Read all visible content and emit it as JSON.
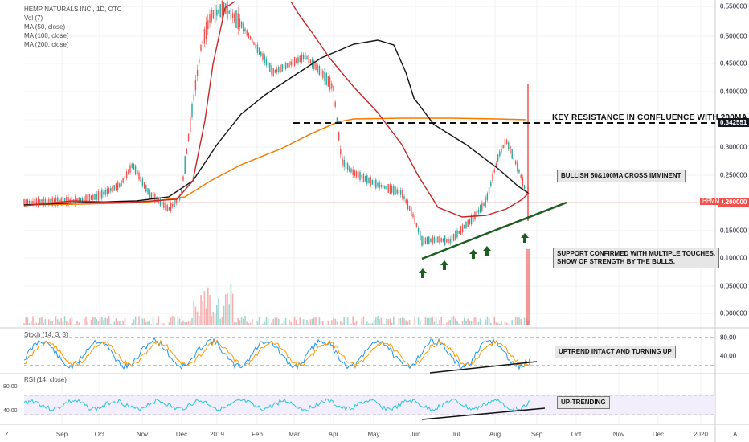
{
  "legend": {
    "title": "HEMP NATURALS INC., 1D, OTC",
    "vol": "Vol (7)",
    "ma50": "MA (50, close)",
    "ma100": "MA (100, close)",
    "ma200": "MA (200, close)"
  },
  "price_axis": [
    "0.550000",
    "0.500000",
    "0.450000",
    "0.400000",
    "0.300000",
    "0.250000",
    "0.150000",
    "0.100000",
    "0.050000",
    "0.000000"
  ],
  "price_tags": {
    "resistance": "0.342551",
    "last": "0.200000",
    "symbol": "HPMM"
  },
  "stoch": {
    "title": "Stoch (14, 3, 3)",
    "levels": [
      "80.00",
      "40.00"
    ]
  },
  "rsi": {
    "title": "RSI (14, close)",
    "levels": [
      "80.00",
      "40.00"
    ]
  },
  "time_axis": [
    "Sep",
    "Oct",
    "Nov",
    "Dec",
    "2019",
    "Feb",
    "Mar",
    "Apr",
    "May",
    "Jun",
    "Jul",
    "Aug",
    "Sep",
    "Oct",
    "Nov",
    "Dec",
    "2020"
  ],
  "annotations": {
    "resistance": "KEY RESISTANCE IN CONFLUENCE WITH  200MA",
    "cross": "BULLISH 50&100MA CROSS IMMINENT",
    "support_line1": "SUPPORT CONFIRMED WITH MULTIPLE TOUCHES.",
    "support_line2": "SHOW OF STRENGTH BY THE BULLS.",
    "stoch": "UPTREND INTACT AND TURNING UP",
    "rsi": "UP-TRENDING"
  },
  "corner_labels": {
    "left": "Z",
    "right": "A"
  },
  "colors": {
    "up": "#26a69a",
    "down": "#ef5350",
    "ma50": "#c62828",
    "ma100": "#111111",
    "ma200": "#f57c00",
    "support": "#1b5e20"
  }
}
